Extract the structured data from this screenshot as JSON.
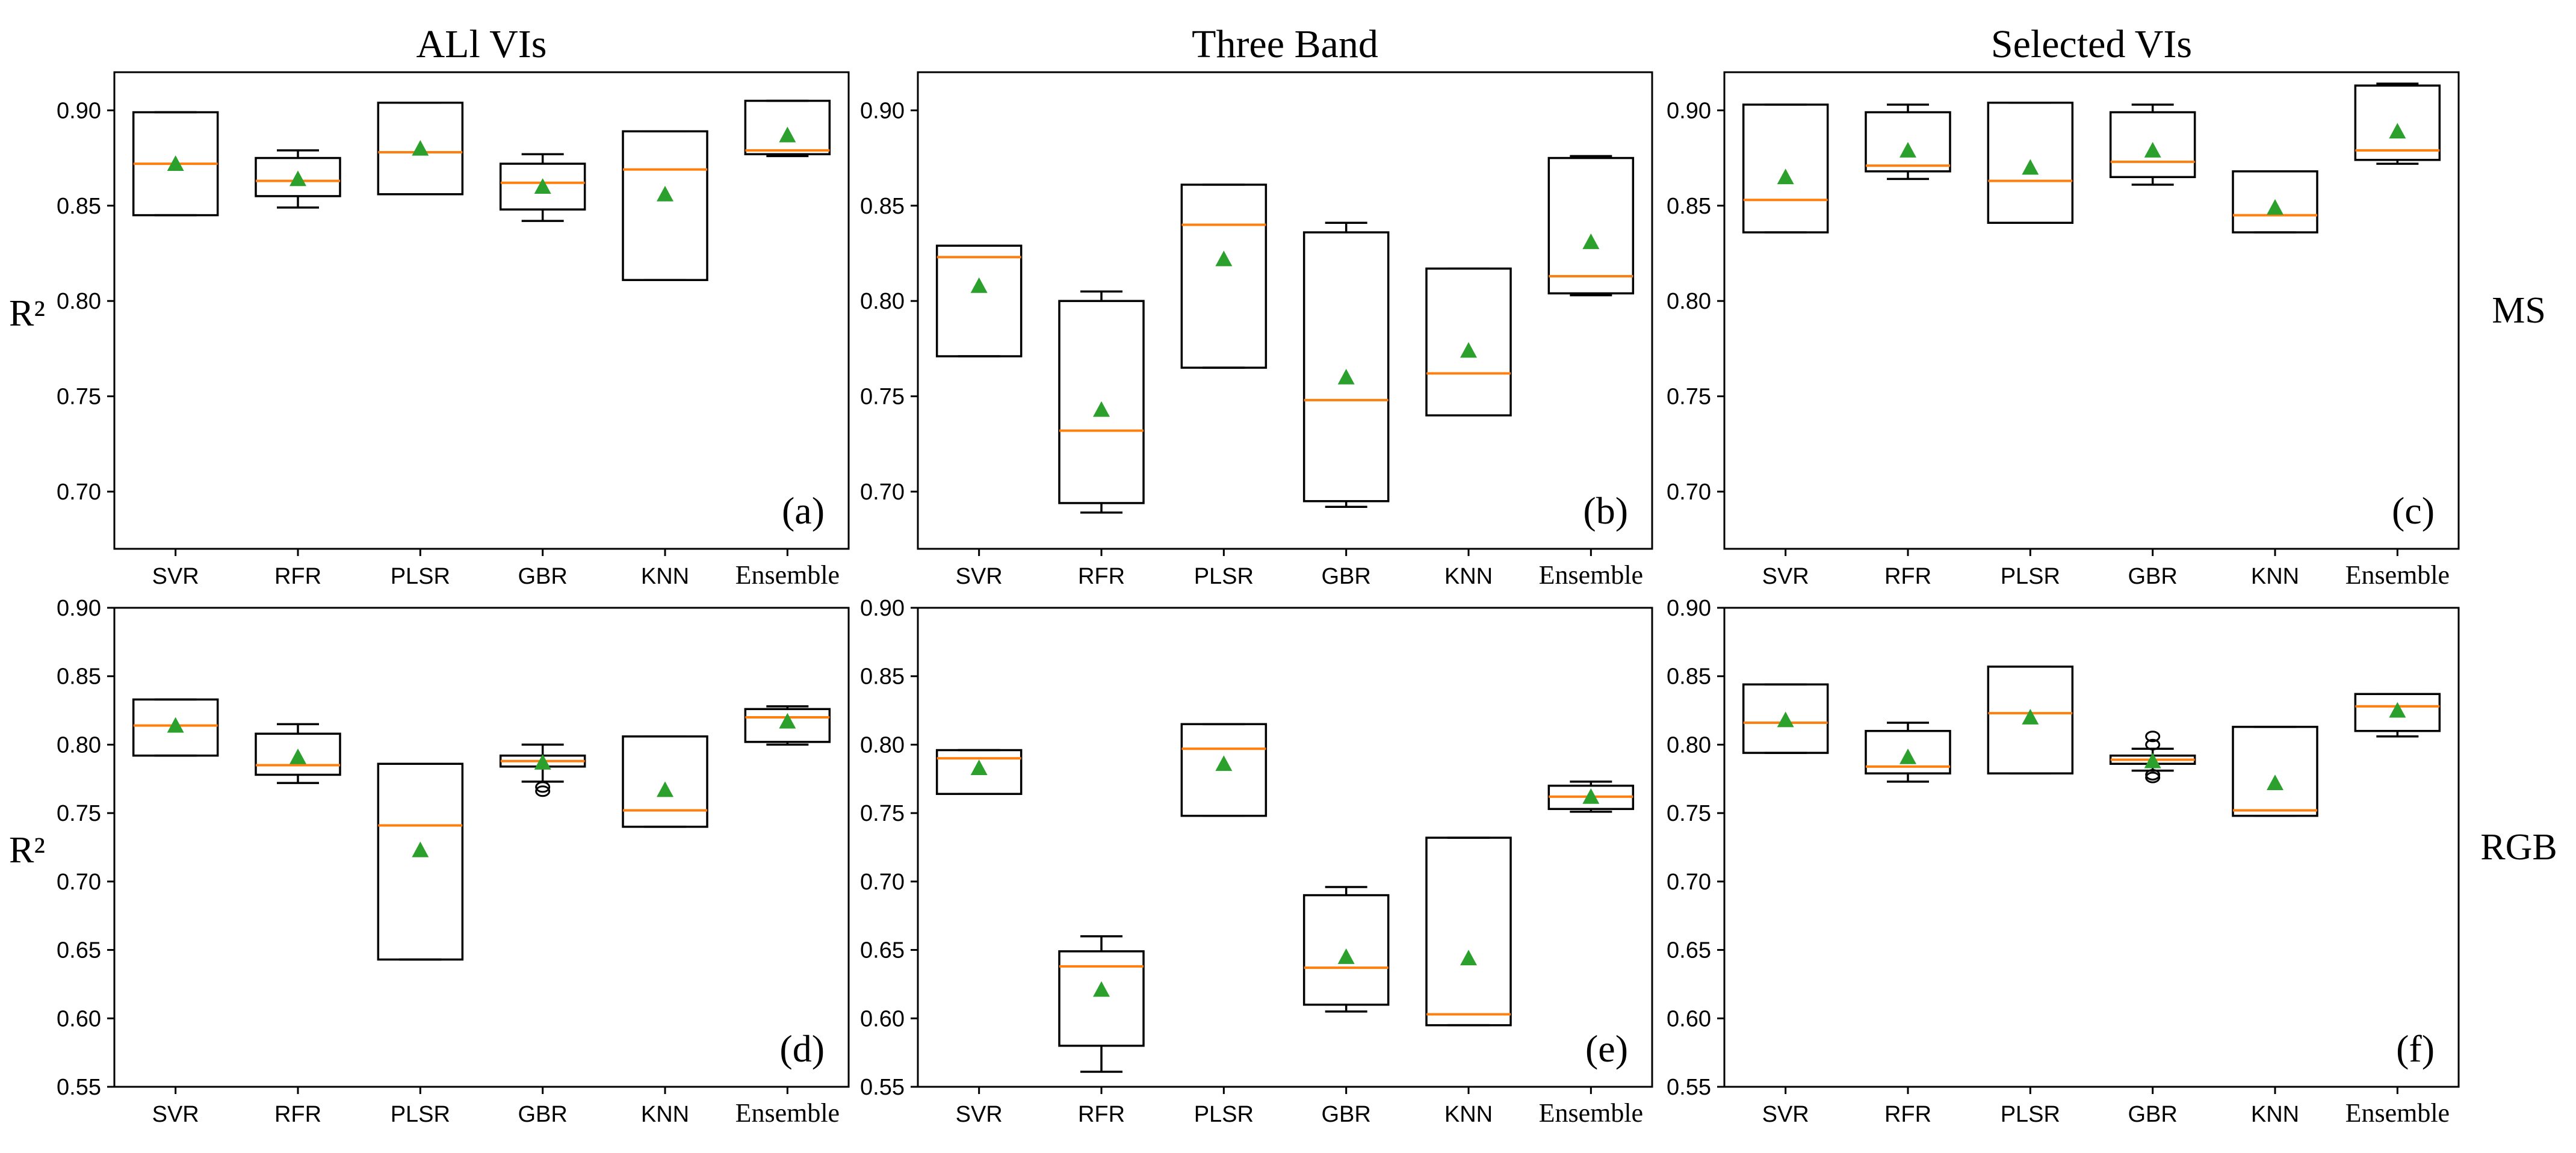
{
  "chart_data": [
    {
      "panel": "(a)",
      "column_title": "ALl VIs",
      "row_label": "MS",
      "ylabel": "R²",
      "type": "boxplot",
      "ylim": [
        0.67,
        0.92
      ],
      "yticks": [
        "0.70",
        "0.75",
        "0.80",
        "0.85",
        "0.90"
      ],
      "categories": [
        "SVR",
        "RFR",
        "PLSR",
        "GBR",
        "KNN",
        "Ensemble"
      ],
      "boxes": [
        {
          "lower": 0.845,
          "q1": 0.845,
          "median": 0.872,
          "q3": 0.899,
          "upper": 0.899,
          "mean": 0.872
        },
        {
          "lower": 0.849,
          "q1": 0.855,
          "median": 0.863,
          "q3": 0.875,
          "upper": 0.879,
          "mean": 0.864
        },
        {
          "lower": 0.856,
          "q1": 0.856,
          "median": 0.878,
          "q3": 0.904,
          "upper": 0.904,
          "mean": 0.88
        },
        {
          "lower": 0.842,
          "q1": 0.848,
          "median": 0.862,
          "q3": 0.872,
          "upper": 0.877,
          "mean": 0.86
        },
        {
          "lower": 0.811,
          "q1": 0.811,
          "median": 0.869,
          "q3": 0.889,
          "upper": 0.889,
          "mean": 0.856
        },
        {
          "lower": 0.876,
          "q1": 0.877,
          "median": 0.879,
          "q3": 0.905,
          "upper": 0.905,
          "mean": 0.887
        }
      ]
    },
    {
      "panel": "(b)",
      "column_title": "Three Band",
      "row_label": "MS",
      "ylabel": "",
      "type": "boxplot",
      "ylim": [
        0.67,
        0.92
      ],
      "yticks": [
        "0.70",
        "0.75",
        "0.80",
        "0.85",
        "0.90"
      ],
      "categories": [
        "SVR",
        "RFR",
        "PLSR",
        "GBR",
        "KNN",
        "Ensemble"
      ],
      "boxes": [
        {
          "lower": 0.771,
          "q1": 0.771,
          "median": 0.823,
          "q3": 0.829,
          "upper": 0.829,
          "mean": 0.808
        },
        {
          "lower": 0.689,
          "q1": 0.694,
          "median": 0.732,
          "q3": 0.8,
          "upper": 0.805,
          "mean": 0.743
        },
        {
          "lower": 0.765,
          "q1": 0.765,
          "median": 0.84,
          "q3": 0.861,
          "upper": 0.861,
          "mean": 0.822
        },
        {
          "lower": 0.692,
          "q1": 0.695,
          "median": 0.748,
          "q3": 0.836,
          "upper": 0.841,
          "mean": 0.76
        },
        {
          "lower": 0.74,
          "q1": 0.74,
          "median": 0.762,
          "q3": 0.817,
          "upper": 0.817,
          "mean": 0.774
        },
        {
          "lower": 0.803,
          "q1": 0.804,
          "median": 0.813,
          "q3": 0.875,
          "upper": 0.876,
          "mean": 0.831
        }
      ]
    },
    {
      "panel": "(c)",
      "column_title": "Selected VIs",
      "row_label": "MS",
      "ylabel": "",
      "type": "boxplot",
      "ylim": [
        0.67,
        0.92
      ],
      "yticks": [
        "0.70",
        "0.75",
        "0.80",
        "0.85",
        "0.90"
      ],
      "categories": [
        "SVR",
        "RFR",
        "PLSR",
        "GBR",
        "KNN",
        "Ensemble"
      ],
      "boxes": [
        {
          "lower": 0.836,
          "q1": 0.836,
          "median": 0.853,
          "q3": 0.903,
          "upper": 0.903,
          "mean": 0.865
        },
        {
          "lower": 0.864,
          "q1": 0.868,
          "median": 0.871,
          "q3": 0.899,
          "upper": 0.903,
          "mean": 0.879
        },
        {
          "lower": 0.841,
          "q1": 0.841,
          "median": 0.863,
          "q3": 0.904,
          "upper": 0.904,
          "mean": 0.87
        },
        {
          "lower": 0.861,
          "q1": 0.865,
          "median": 0.873,
          "q3": 0.899,
          "upper": 0.903,
          "mean": 0.879
        },
        {
          "lower": 0.836,
          "q1": 0.836,
          "median": 0.845,
          "q3": 0.868,
          "upper": 0.868,
          "mean": 0.849
        },
        {
          "lower": 0.872,
          "q1": 0.874,
          "median": 0.879,
          "q3": 0.913,
          "upper": 0.914,
          "mean": 0.889
        }
      ]
    },
    {
      "panel": "(d)",
      "column_title": "",
      "row_label": "RGB",
      "ylabel": "R²",
      "type": "boxplot",
      "ylim": [
        0.55,
        0.9
      ],
      "yticks": [
        "0.55",
        "0.60",
        "0.65",
        "0.70",
        "0.75",
        "0.80",
        "0.85",
        "0.90"
      ],
      "categories": [
        "SVR",
        "RFR",
        "PLSR",
        "GBR",
        "KNN",
        "Ensemble"
      ],
      "boxes": [
        {
          "lower": 0.792,
          "q1": 0.792,
          "median": 0.814,
          "q3": 0.833,
          "upper": 0.833,
          "mean": 0.814
        },
        {
          "lower": 0.772,
          "q1": 0.778,
          "median": 0.785,
          "q3": 0.808,
          "upper": 0.815,
          "mean": 0.791
        },
        {
          "lower": 0.643,
          "q1": 0.643,
          "median": 0.741,
          "q3": 0.786,
          "upper": 0.786,
          "mean": 0.723
        },
        {
          "lower": 0.773,
          "q1": 0.784,
          "median": 0.788,
          "q3": 0.792,
          "upper": 0.8,
          "mean": 0.787,
          "fliers": [
            0.769,
            0.766
          ]
        },
        {
          "lower": 0.74,
          "q1": 0.74,
          "median": 0.752,
          "q3": 0.806,
          "upper": 0.806,
          "mean": 0.767
        },
        {
          "lower": 0.8,
          "q1": 0.802,
          "median": 0.82,
          "q3": 0.826,
          "upper": 0.828,
          "mean": 0.817
        }
      ]
    },
    {
      "panel": "(e)",
      "column_title": "",
      "row_label": "RGB",
      "ylabel": "",
      "type": "boxplot",
      "ylim": [
        0.55,
        0.9
      ],
      "yticks": [
        "0.55",
        "0.60",
        "0.65",
        "0.70",
        "0.75",
        "0.80",
        "0.85",
        "0.90"
      ],
      "categories": [
        "SVR",
        "RFR",
        "PLSR",
        "GBR",
        "KNN",
        "Ensemble"
      ],
      "boxes": [
        {
          "lower": 0.764,
          "q1": 0.764,
          "median": 0.79,
          "q3": 0.796,
          "upper": 0.796,
          "mean": 0.783
        },
        {
          "lower": 0.561,
          "q1": 0.58,
          "median": 0.638,
          "q3": 0.649,
          "upper": 0.66,
          "mean": 0.621
        },
        {
          "lower": 0.748,
          "q1": 0.748,
          "median": 0.797,
          "q3": 0.815,
          "upper": 0.815,
          "mean": 0.786
        },
        {
          "lower": 0.605,
          "q1": 0.61,
          "median": 0.637,
          "q3": 0.69,
          "upper": 0.696,
          "mean": 0.645
        },
        {
          "lower": 0.595,
          "q1": 0.595,
          "median": 0.603,
          "q3": 0.732,
          "upper": 0.732,
          "mean": 0.644
        },
        {
          "lower": 0.751,
          "q1": 0.753,
          "median": 0.762,
          "q3": 0.77,
          "upper": 0.773,
          "mean": 0.762
        }
      ]
    },
    {
      "panel": "(f)",
      "column_title": "",
      "row_label": "RGB",
      "ylabel": "",
      "type": "boxplot",
      "ylim": [
        0.55,
        0.9
      ],
      "yticks": [
        "0.55",
        "0.60",
        "0.65",
        "0.70",
        "0.75",
        "0.80",
        "0.85",
        "0.90"
      ],
      "categories": [
        "SVR",
        "RFR",
        "PLSR",
        "GBR",
        "KNN",
        "Ensemble"
      ],
      "boxes": [
        {
          "lower": 0.794,
          "q1": 0.794,
          "median": 0.816,
          "q3": 0.844,
          "upper": 0.844,
          "mean": 0.818
        },
        {
          "lower": 0.773,
          "q1": 0.779,
          "median": 0.784,
          "q3": 0.81,
          "upper": 0.816,
          "mean": 0.791
        },
        {
          "lower": 0.779,
          "q1": 0.779,
          "median": 0.823,
          "q3": 0.857,
          "upper": 0.857,
          "mean": 0.82
        },
        {
          "lower": 0.781,
          "q1": 0.786,
          "median": 0.789,
          "q3": 0.792,
          "upper": 0.797,
          "mean": 0.788,
          "fliers": [
            0.806,
            0.8,
            0.778,
            0.776
          ]
        },
        {
          "lower": 0.748,
          "q1": 0.748,
          "median": 0.752,
          "q3": 0.813,
          "upper": 0.813,
          "mean": 0.772
        },
        {
          "lower": 0.806,
          "q1": 0.81,
          "median": 0.828,
          "q3": 0.837,
          "upper": 0.837,
          "mean": 0.825
        }
      ]
    }
  ],
  "colors": {
    "median": "#ff7f0e",
    "mean_marker": "#2ca02c",
    "box": "#000000"
  }
}
